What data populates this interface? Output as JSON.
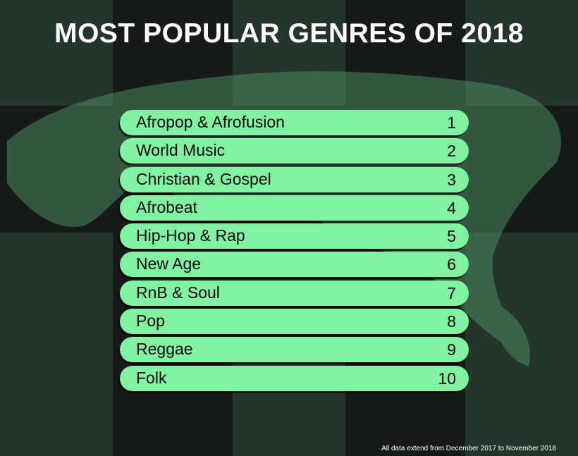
{
  "title": "MOST POPULAR GENRES OF 2018",
  "genres": [
    {
      "name": "Afropop & Afrofusion",
      "rank": 1
    },
    {
      "name": "World Music",
      "rank": 2
    },
    {
      "name": "Christian & Gospel",
      "rank": 3
    },
    {
      "name": "Afrobeat",
      "rank": 4
    },
    {
      "name": "Hip-Hop & Rap",
      "rank": 5
    },
    {
      "name": "New Age",
      "rank": 6
    },
    {
      "name": "RnB & Soul",
      "rank": 7
    },
    {
      "name": "Pop",
      "rank": 8
    },
    {
      "name": "Reggae",
      "rank": 9
    },
    {
      "name": "Folk",
      "rank": 10
    }
  ],
  "footnote": "All data extend from December 2017 to November 2018"
}
